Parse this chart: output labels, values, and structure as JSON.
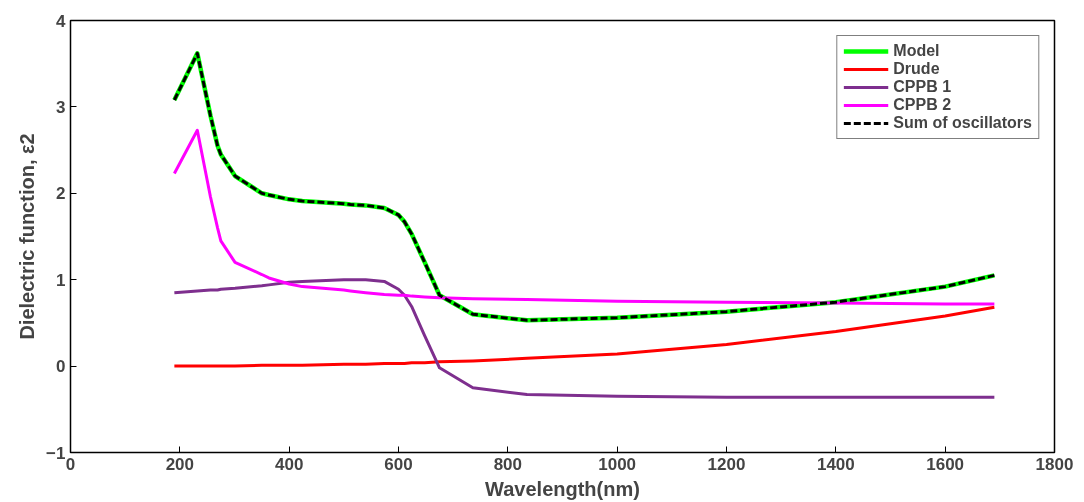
{
  "chart_data": {
    "type": "line",
    "xlabel": "Wavelength(nm)",
    "ylabel": "Dielectric function, ε2",
    "x": [
      190,
      232,
      256,
      269,
      275,
      301,
      350,
      363,
      400,
      424,
      500,
      512,
      540,
      574,
      600,
      611,
      624,
      648,
      675,
      736,
      835,
      1000,
      1200,
      1400,
      1600,
      1690
    ],
    "series": [
      {
        "name": "Model",
        "color": "#00ff00",
        "values": [
          3.08,
          3.62,
          2.9,
          2.55,
          2.45,
          2.2,
          2.0,
          1.98,
          1.93,
          1.91,
          1.88,
          1.87,
          1.86,
          1.83,
          1.75,
          1.67,
          1.53,
          1.2,
          0.82,
          0.6,
          0.53,
          0.56,
          0.63,
          0.74,
          0.92,
          1.05
        ]
      },
      {
        "name": "Drude",
        "color": "#ff0000",
        "values": [
          0.0,
          0.0,
          0.0,
          0.0,
          0.0,
          0.0,
          0.01,
          0.01,
          0.01,
          0.01,
          0.02,
          0.02,
          0.02,
          0.03,
          0.03,
          0.03,
          0.04,
          0.04,
          0.05,
          0.06,
          0.09,
          0.14,
          0.25,
          0.4,
          0.58,
          0.68
        ]
      },
      {
        "name": "CPPB 1",
        "color": "#7e2f8e",
        "values": [
          0.85,
          0.87,
          0.88,
          0.88,
          0.89,
          0.9,
          0.93,
          0.94,
          0.97,
          0.98,
          1.0,
          1.0,
          1.0,
          0.98,
          0.89,
          0.82,
          0.69,
          0.35,
          -0.02,
          -0.25,
          -0.33,
          -0.35,
          -0.36,
          -0.36,
          -0.36,
          -0.36
        ]
      },
      {
        "name": "CPPB 2",
        "color": "#ff00ff",
        "values": [
          2.23,
          2.73,
          1.96,
          1.6,
          1.45,
          1.2,
          1.06,
          1.02,
          0.95,
          0.92,
          0.88,
          0.87,
          0.85,
          0.83,
          0.82,
          0.82,
          0.81,
          0.8,
          0.79,
          0.78,
          0.77,
          0.75,
          0.74,
          0.73,
          0.72,
          0.72
        ]
      },
      {
        "name": "Sum of oscillators",
        "color": "#000000",
        "line_style": "dashed",
        "values": [
          3.08,
          3.62,
          2.9,
          2.55,
          2.45,
          2.2,
          2.0,
          1.98,
          1.93,
          1.91,
          1.88,
          1.87,
          1.86,
          1.83,
          1.75,
          1.67,
          1.53,
          1.2,
          0.82,
          0.6,
          0.53,
          0.56,
          0.63,
          0.74,
          0.92,
          1.05
        ]
      }
    ],
    "xlim": [
      0,
      1800
    ],
    "xticks": [
      0,
      200,
      400,
      600,
      800,
      1000,
      1200,
      1400,
      1600,
      1800
    ],
    "ylim": [
      -1,
      4
    ],
    "yticks": [
      -1,
      0,
      1,
      2,
      3,
      4
    ],
    "grid": false,
    "legend": "top right",
    "line_style": "solid"
  }
}
